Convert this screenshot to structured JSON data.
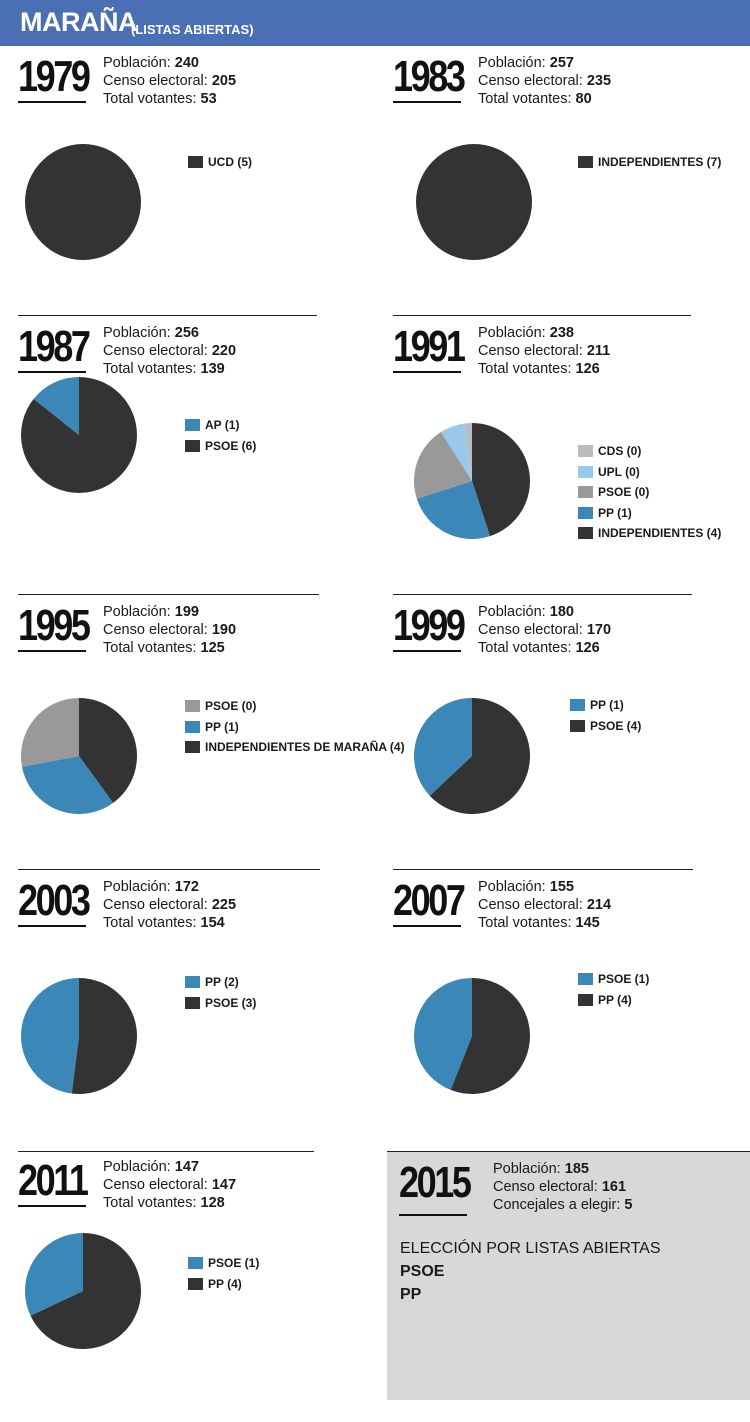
{
  "header": {
    "title": "MARAÑA",
    "subtitle": "(LISTAS ABIERTAS)",
    "color": "#4a6fb5"
  },
  "labels": {
    "poblacion": "Población:",
    "censo": "Censo electoral:",
    "votantes": "Total votantes:",
    "concejales": "Concejales a elegir:"
  },
  "colors": {
    "dark": "#333333",
    "blue": "#3a87b8",
    "gray": "#999999",
    "lightgray": "#bcbcbc",
    "lightblue": "#9ac8ea"
  },
  "chart_data": [
    {
      "type": "pie",
      "year": "1979",
      "poblacion": "240",
      "censo": "205",
      "votantes": "53",
      "slices": [
        {
          "label": "UCD (5)",
          "value": 5,
          "color": "#333333"
        }
      ]
    },
    {
      "type": "pie",
      "year": "1983",
      "poblacion": "257",
      "censo": "235",
      "votantes": "80",
      "slices": [
        {
          "label": "INDEPENDIENTES (7)",
          "value": 7,
          "color": "#333333"
        }
      ]
    },
    {
      "type": "pie",
      "year": "1987",
      "poblacion": "256",
      "censo": "220",
      "votantes": "139",
      "slices": [
        {
          "label": "AP (1)",
          "value": 1,
          "color": "#3a87b8"
        },
        {
          "label": "PSOE (6)",
          "value": 6,
          "color": "#333333"
        }
      ]
    },
    {
      "type": "pie",
      "year": "1991",
      "poblacion": "238",
      "censo": "211",
      "votantes": "126",
      "slices": [
        {
          "label": "CDS (0)",
          "value": 0.1,
          "color": "#bcbcbc"
        },
        {
          "label": "UPL (0)",
          "value": 0.35,
          "color": "#9ac8ea"
        },
        {
          "label": "PSOE (0)",
          "value": 1.05,
          "color": "#999999"
        },
        {
          "label": "PP (1)",
          "value": 1.25,
          "color": "#3a87b8"
        },
        {
          "label": "INDEPENDIENTES (4)",
          "value": 2.25,
          "color": "#333333"
        }
      ]
    },
    {
      "type": "pie",
      "year": "1995",
      "poblacion": "199",
      "censo": "190",
      "votantes": "125",
      "slices": [
        {
          "label": "PSOE (0)",
          "value": 1.4,
          "color": "#999999"
        },
        {
          "label": "PP (1)",
          "value": 1.6,
          "color": "#3a87b8"
        },
        {
          "label": "INDEPENDIENTES DE MARAÑA (4)",
          "value": 2,
          "color": "#333333"
        }
      ]
    },
    {
      "type": "pie",
      "year": "1999",
      "poblacion": "180",
      "censo": "170",
      "votantes": "126",
      "slices": [
        {
          "label": "PP (1)",
          "value": 1.85,
          "color": "#3a87b8"
        },
        {
          "label": "PSOE (4)",
          "value": 3.15,
          "color": "#333333"
        }
      ]
    },
    {
      "type": "pie",
      "year": "2003",
      "poblacion": "172",
      "censo": "225",
      "votantes": "154",
      "slices": [
        {
          "label": "PP (2)",
          "value": 2.4,
          "color": "#3a87b8"
        },
        {
          "label": "PSOE (3)",
          "value": 2.6,
          "color": "#333333"
        }
      ]
    },
    {
      "type": "pie",
      "year": "2007",
      "poblacion": "155",
      "censo": "214",
      "votantes": "145",
      "slices": [
        {
          "label": "PSOE (1)",
          "value": 2.2,
          "color": "#3a87b8"
        },
        {
          "label": "PP (4)",
          "value": 2.8,
          "color": "#333333"
        }
      ]
    },
    {
      "type": "pie",
      "year": "2011",
      "poblacion": "147",
      "censo": "147",
      "votantes": "128",
      "slices": [
        {
          "label": "PSOE (1)",
          "value": 1.6,
          "color": "#3a87b8"
        },
        {
          "label": "PP (4)",
          "value": 3.4,
          "color": "#333333"
        }
      ]
    }
  ],
  "year2015": {
    "year": "2015",
    "poblacion": "185",
    "censo": "161",
    "concejales": "5",
    "note": "ELECCIÓN POR LISTAS ABIERTAS",
    "parties": [
      "PSOE",
      "PP"
    ]
  }
}
